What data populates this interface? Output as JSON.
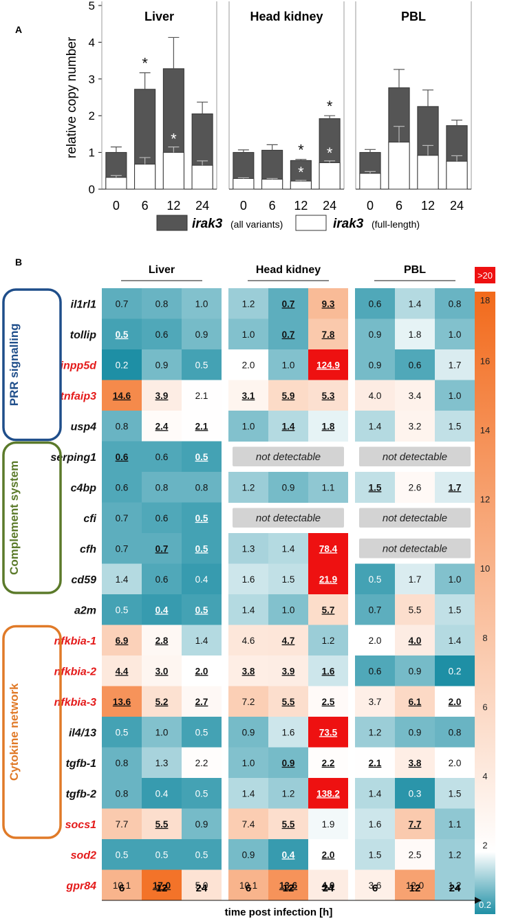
{
  "panel_a": {
    "label": "A",
    "ylabel": "relative copy number",
    "yticks": [
      "0",
      "1",
      "2",
      "3",
      "4",
      "5"
    ],
    "legend": [
      {
        "gene": "irak3",
        "desc": "(all variants)",
        "color": "#555555"
      },
      {
        "gene": "irak3",
        "desc": "(full-length)",
        "color": "#ffffff"
      }
    ]
  },
  "panel_b": {
    "label": "B",
    "xlabel": "time post infection [h]",
    "groups": [
      "PRR signalling",
      "Complement system",
      "Cytokine network"
    ],
    "group_colors": [
      "#1f4e8a",
      "#5b7a2a",
      "#e07a28"
    ],
    "not_detectable": "not detectable",
    "colorbar": {
      "top_label": ">20",
      "ticks": [
        "18",
        "16",
        "14",
        "12",
        "10",
        "8",
        "6",
        "4",
        "2",
        "0.2"
      ]
    }
  },
  "colors": {
    "low": "#1e8fa5",
    "mid": "#ffffff",
    "high": "#f26a1b",
    "extreme": "#ee1111"
  },
  "chart_data": [
    {
      "type": "bar",
      "title": "Liver",
      "categories": [
        "0",
        "6",
        "12",
        "24"
      ],
      "xlabel": "",
      "ylabel": "relative copy number",
      "ylim": [
        0,
        5
      ],
      "series": [
        {
          "name": "irak3 (all variants)",
          "values": [
            1.0,
            2.72,
            3.28,
            2.05
          ],
          "errors": [
            0.15,
            0.45,
            0.85,
            0.32
          ],
          "asterisks": [
            "",
            "*",
            "",
            ""
          ]
        },
        {
          "name": "irak3 (full-length)",
          "values": [
            0.32,
            0.68,
            1.0,
            0.65
          ],
          "errors": [
            0.05,
            0.18,
            0.15,
            0.12
          ],
          "asterisks": [
            "",
            "",
            "*",
            ""
          ]
        }
      ]
    },
    {
      "type": "bar",
      "title": "Head kidney",
      "categories": [
        "0",
        "6",
        "12",
        "24"
      ],
      "ylim": [
        0,
        5
      ],
      "series": [
        {
          "name": "irak3 (all variants)",
          "values": [
            1.0,
            1.06,
            0.78,
            1.92
          ],
          "errors": [
            0.07,
            0.15,
            0.03,
            0.08
          ],
          "asterisks": [
            "",
            "",
            "*",
            "*"
          ]
        },
        {
          "name": "irak3 (full-length)",
          "values": [
            0.29,
            0.27,
            0.22,
            0.72
          ],
          "errors": [
            0.02,
            0.02,
            0.02,
            0.05
          ],
          "asterisks": [
            "",
            "",
            "*",
            "*"
          ]
        }
      ]
    },
    {
      "type": "bar",
      "title": "PBL",
      "categories": [
        "0",
        "6",
        "12",
        "24"
      ],
      "ylim": [
        0,
        5
      ],
      "series": [
        {
          "name": "irak3 (all variants)",
          "values": [
            1.0,
            2.76,
            2.25,
            1.73
          ],
          "errors": [
            0.08,
            0.5,
            0.45,
            0.15
          ],
          "asterisks": [
            "",
            "",
            "",
            ""
          ]
        },
        {
          "name": "irak3 (full-length)",
          "values": [
            0.43,
            1.28,
            0.92,
            0.76
          ],
          "errors": [
            0.05,
            0.43,
            0.27,
            0.15
          ],
          "asterisks": [
            "",
            "",
            "",
            ""
          ]
        }
      ]
    },
    {
      "type": "heatmap",
      "tissues": [
        "Liver",
        "Head kidney",
        "PBL"
      ],
      "timepoints": [
        "6",
        "12",
        "24"
      ],
      "xlabel": "time post infection [h]",
      "color_scale": {
        "min": 0.2,
        "center": 2,
        "max": 18,
        "saturated_above": 20
      },
      "rows": [
        {
          "gene": "il1rl1",
          "red": false,
          "group": 0,
          "values": [
            "0.7",
            "0.8",
            "1.0",
            "1.2",
            "0.7",
            "9.3",
            "0.6",
            "1.4",
            "0.8"
          ],
          "sig": [
            0,
            0,
            0,
            0,
            1,
            1,
            0,
            0,
            0
          ]
        },
        {
          "gene": "tollip",
          "red": false,
          "group": 0,
          "values": [
            "0.5",
            "0.6",
            "0.9",
            "1.0",
            "0.7",
            "7.8",
            "0.9",
            "1.8",
            "1.0"
          ],
          "sig": [
            1,
            0,
            0,
            0,
            1,
            1,
            0,
            0,
            0
          ]
        },
        {
          "gene": "inpp5d",
          "red": true,
          "group": 0,
          "values": [
            "0.2",
            "0.9",
            "0.5",
            "2.0",
            "1.0",
            "124.9",
            "0.9",
            "0.6",
            "1.7"
          ],
          "sig": [
            0,
            0,
            0,
            0,
            0,
            1,
            0,
            0,
            0
          ]
        },
        {
          "gene": "tnfaip3",
          "red": true,
          "group": 0,
          "values": [
            "14.6",
            "3.9",
            "2.1",
            "3.1",
            "5.9",
            "5.3",
            "4.0",
            "3.4",
            "1.0"
          ],
          "sig": [
            1,
            1,
            0,
            1,
            1,
            1,
            0,
            0,
            0
          ]
        },
        {
          "gene": "usp4",
          "red": false,
          "group": 0,
          "values": [
            "0.8",
            "2.4",
            "2.1",
            "1.0",
            "1.4",
            "1.8",
            "1.4",
            "3.2",
            "1.5"
          ],
          "sig": [
            0,
            1,
            1,
            0,
            1,
            1,
            0,
            0,
            0
          ]
        },
        {
          "gene": "serping1",
          "red": false,
          "group": 1,
          "values": [
            "0.6",
            "0.6",
            "0.5",
            null,
            null,
            null,
            null,
            null,
            null
          ],
          "sig": [
            1,
            0,
            1,
            0,
            0,
            0,
            0,
            0,
            0
          ]
        },
        {
          "gene": "c4bp",
          "red": false,
          "group": 1,
          "values": [
            "0.6",
            "0.8",
            "0.8",
            "1.2",
            "0.9",
            "1.1",
            "1.5",
            "2.6",
            "1.7"
          ],
          "sig": [
            0,
            0,
            0,
            0,
            0,
            0,
            1,
            0,
            1
          ]
        },
        {
          "gene": "cfi",
          "red": false,
          "group": 1,
          "values": [
            "0.7",
            "0.6",
            "0.5",
            null,
            null,
            null,
            null,
            null,
            null
          ],
          "sig": [
            0,
            0,
            1,
            0,
            0,
            0,
            0,
            0,
            0
          ]
        },
        {
          "gene": "cfh",
          "red": false,
          "group": 1,
          "values": [
            "0.7",
            "0.7",
            "0.5",
            "1.3",
            "1.4",
            "78.4",
            null,
            null,
            null
          ],
          "sig": [
            0,
            1,
            1,
            0,
            0,
            1,
            0,
            0,
            0
          ]
        },
        {
          "gene": "cd59",
          "red": false,
          "group": 1,
          "values": [
            "1.4",
            "0.6",
            "0.4",
            "1.6",
            "1.5",
            "21.9",
            "0.5",
            "1.7",
            "1.0"
          ],
          "sig": [
            0,
            0,
            0,
            0,
            0,
            1,
            0,
            0,
            0
          ]
        },
        {
          "gene": "a2m",
          "red": false,
          "group": -1,
          "values": [
            "0.5",
            "0.4",
            "0.5",
            "1.4",
            "1.0",
            "5.7",
            "0.7",
            "5.5",
            "1.5"
          ],
          "sig": [
            0,
            1,
            1,
            0,
            0,
            1,
            0,
            0,
            0
          ]
        },
        {
          "gene": "nfkbia-1",
          "red": true,
          "group": 2,
          "values": [
            "6.9",
            "2.8",
            "1.4",
            "4.6",
            "4.7",
            "1.2",
            "2.0",
            "4.0",
            "1.4"
          ],
          "sig": [
            1,
            1,
            0,
            0,
            1,
            0,
            0,
            1,
            0
          ]
        },
        {
          "gene": "nfkbia-2",
          "red": true,
          "group": 2,
          "values": [
            "4.4",
            "3.0",
            "2.0",
            "3.8",
            "3.9",
            "1.6",
            "0.6",
            "0.9",
            "0.2"
          ],
          "sig": [
            1,
            1,
            1,
            1,
            1,
            1,
            0,
            0,
            0
          ]
        },
        {
          "gene": "nfkbia-3",
          "red": true,
          "group": 2,
          "values": [
            "13.6",
            "5.2",
            "2.7",
            "7.2",
            "5.5",
            "2.5",
            "3.7",
            "6.1",
            "2.0"
          ],
          "sig": [
            1,
            1,
            1,
            0,
            1,
            1,
            0,
            1,
            1
          ]
        },
        {
          "gene": "il4/13",
          "red": false,
          "group": 2,
          "values": [
            "0.5",
            "1.0",
            "0.5",
            "0.9",
            "1.6",
            "73.5",
            "1.2",
            "0.9",
            "0.8"
          ],
          "sig": [
            0,
            0,
            0,
            0,
            0,
            1,
            0,
            0,
            0
          ]
        },
        {
          "gene": "tgfb-1",
          "red": false,
          "group": 2,
          "values": [
            "0.8",
            "1.3",
            "2.2",
            "1.0",
            "0.9",
            "2.2",
            "2.1",
            "3.8",
            "2.0"
          ],
          "sig": [
            0,
            0,
            0,
            0,
            1,
            1,
            1,
            1,
            0
          ]
        },
        {
          "gene": "tgfb-2",
          "red": false,
          "group": 2,
          "values": [
            "0.8",
            "0.4",
            "0.5",
            "1.4",
            "1.2",
            "138.2",
            "1.4",
            "0.3",
            "1.5"
          ],
          "sig": [
            0,
            0,
            0,
            0,
            0,
            1,
            0,
            0,
            0
          ]
        },
        {
          "gene": "socs1",
          "red": true,
          "group": 2,
          "values": [
            "7.7",
            "5.5",
            "0.9",
            "7.4",
            "5.5",
            "1.9",
            "1.6",
            "7.7",
            "1.1"
          ],
          "sig": [
            0,
            1,
            0,
            0,
            1,
            0,
            0,
            1,
            0
          ]
        },
        {
          "gene": "sod2",
          "red": true,
          "group": -1,
          "values": [
            "0.5",
            "0.5",
            "0.5",
            "0.9",
            "0.4",
            "2.0",
            "1.5",
            "2.5",
            "1.2"
          ],
          "sig": [
            0,
            0,
            0,
            0,
            1,
            1,
            0,
            0,
            0
          ]
        },
        {
          "gene": "gpr84",
          "red": true,
          "group": -1,
          "values": [
            "10.1",
            "17.0",
            "5.0",
            "10.1",
            "13.6",
            "4.0",
            "3.6",
            "12.0",
            "1.2"
          ],
          "sig": [
            0,
            1,
            0,
            0,
            1,
            1,
            0,
            0,
            0
          ]
        }
      ]
    }
  ]
}
